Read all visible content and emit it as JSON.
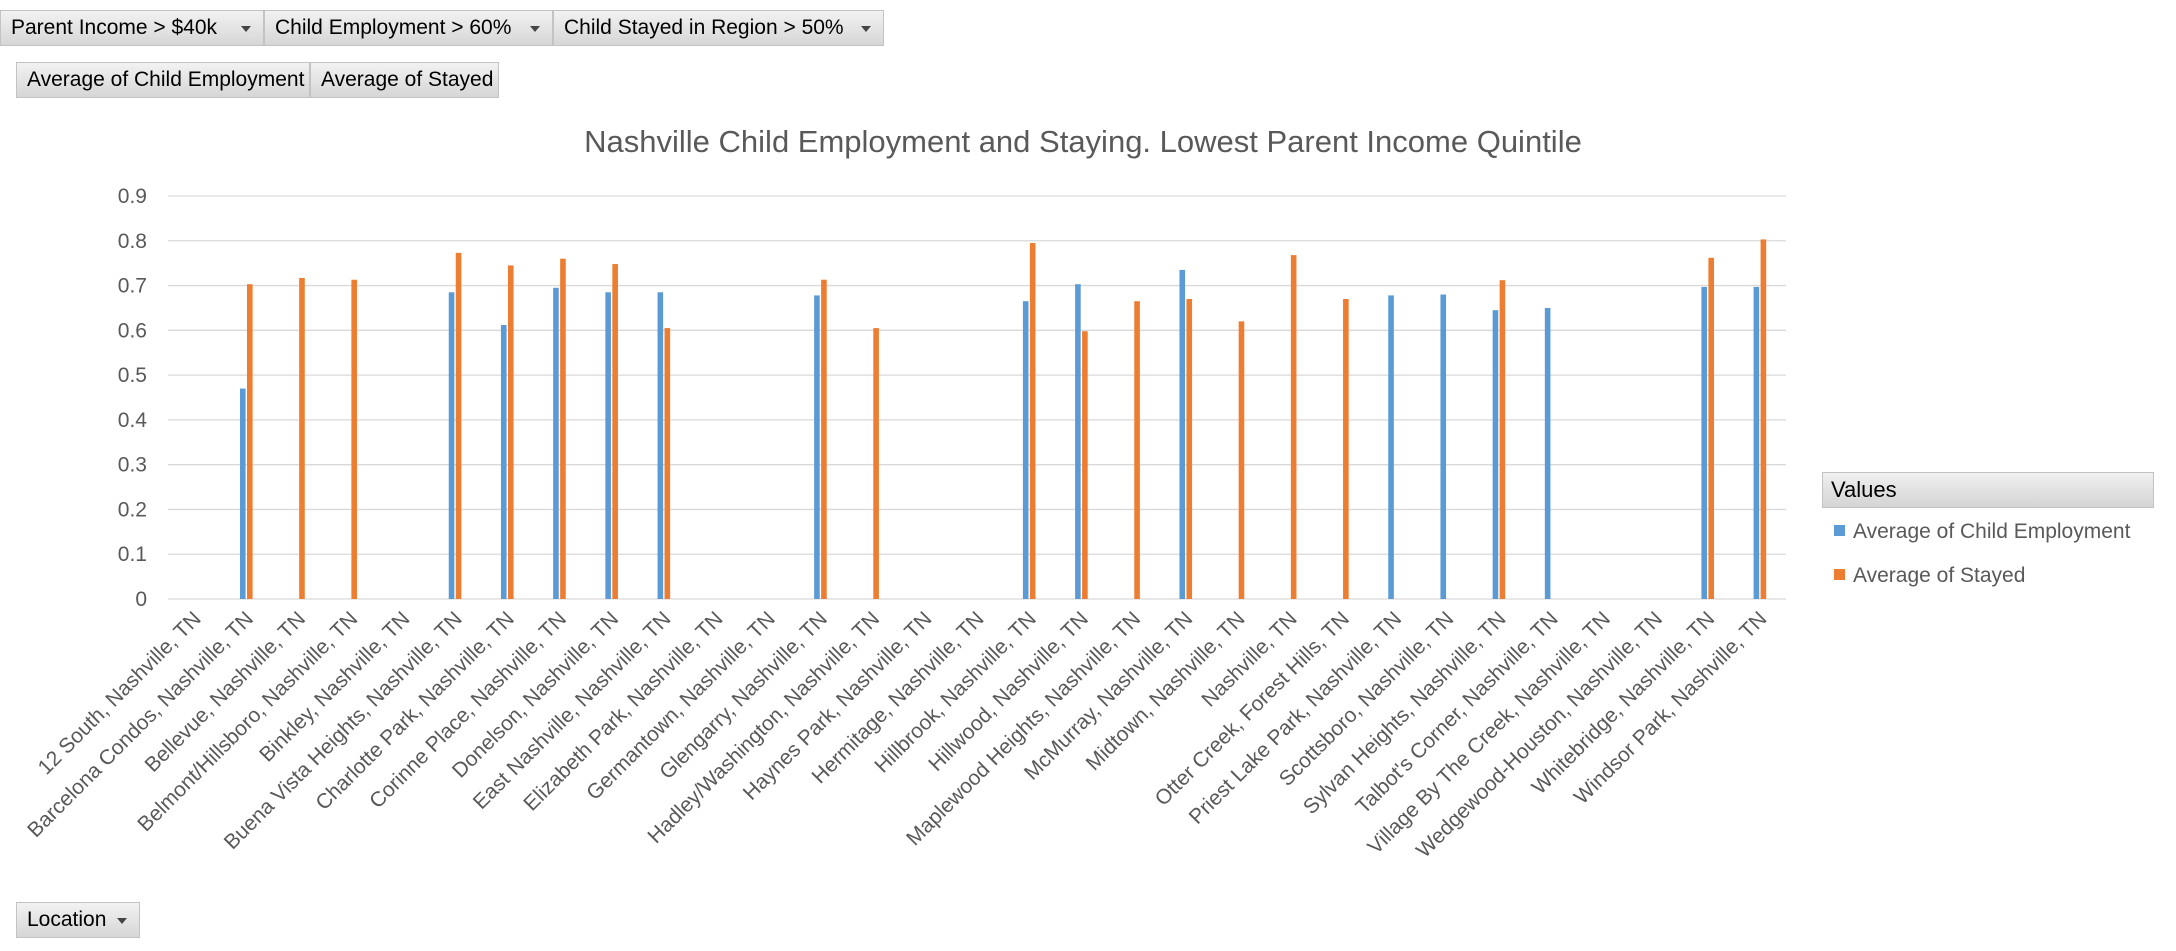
{
  "filters": [
    {
      "label": "Parent Income > $40k"
    },
    {
      "label": "Child Employment > 60%"
    },
    {
      "label": "Child Stayed in Region > 50%"
    }
  ],
  "value_buttons": [
    "Average of Child Employment",
    "Average of Stayed"
  ],
  "axis_field": {
    "label": "Location"
  },
  "legend": {
    "header": "Values"
  },
  "colors": {
    "employment": "#5b9bd5",
    "stayed": "#ed7d31",
    "grid": "#d9d9d9",
    "text": "#595959"
  },
  "chart_data": {
    "type": "bar",
    "title": "Nashville Child Employment and Staying. Lowest Parent Income Quintile",
    "xlabel": "",
    "ylabel": "",
    "ylim": [
      0,
      0.9
    ],
    "y_ticks": [
      "0",
      "0.1",
      "0.2",
      "0.3",
      "0.4",
      "0.5",
      "0.6",
      "0.7",
      "0.8",
      "0.9"
    ],
    "grid": true,
    "legend_position": "right",
    "categories": [
      "12 South, Nashville, TN",
      "Barcelona Condos, Nashville, TN",
      "Bellevue, Nashville, TN",
      "Belmont/Hillsboro, Nashville, TN",
      "Binkley, Nashville, TN",
      "Buena Vista Heights, Nashville, TN",
      "Charlotte Park, Nashville, TN",
      "Corinne Place, Nashville, TN",
      "Donelson, Nashville, TN",
      "East Nashville, Nashville, TN",
      "Elizabeth Park, Nashville, TN",
      "Germantown, Nashville, TN",
      "Glengarry, Nashville, TN",
      "Hadley/Washington, Nashville, TN",
      "Haynes Park, Nashville, TN",
      "Hermitage, Nashville, TN",
      "Hillbrook, Nashville, TN",
      "Hillwood, Nashville, TN",
      "Maplewood Heights, Nashville, TN",
      "McMurray, Nashville, TN",
      "Midtown, Nashville, TN",
      "Nashville, TN",
      "Otter Creek, Forest Hills, TN",
      "Priest Lake Park, Nashville, TN",
      "Scottsboro, Nashville, TN",
      "Sylvan Heights, Nashville, TN",
      "Talbot's Corner, Nashville, TN",
      "Village By The Creek, Nashville, TN",
      "Wedgewood-Houston, Nashville, TN",
      "Whitebridge, Nashville, TN",
      "Windsor Park, Nashville, TN"
    ],
    "series": [
      {
        "name": "Average of Child Employment",
        "values": [
          null,
          0.47,
          null,
          null,
          null,
          0.685,
          0.612,
          0.695,
          0.685,
          0.685,
          null,
          null,
          0.678,
          null,
          null,
          null,
          0.665,
          0.703,
          null,
          0.735,
          null,
          null,
          null,
          0.678,
          0.68,
          0.645,
          0.65,
          null,
          null,
          0.697,
          0.697
        ]
      },
      {
        "name": "Average of Stayed",
        "values": [
          null,
          0.703,
          0.717,
          0.713,
          null,
          0.773,
          0.745,
          0.76,
          0.748,
          0.605,
          null,
          null,
          0.713,
          0.605,
          null,
          null,
          0.795,
          0.598,
          0.665,
          0.67,
          0.62,
          0.768,
          0.67,
          null,
          null,
          0.712,
          null,
          null,
          null,
          0.762,
          0.803
        ]
      }
    ]
  }
}
